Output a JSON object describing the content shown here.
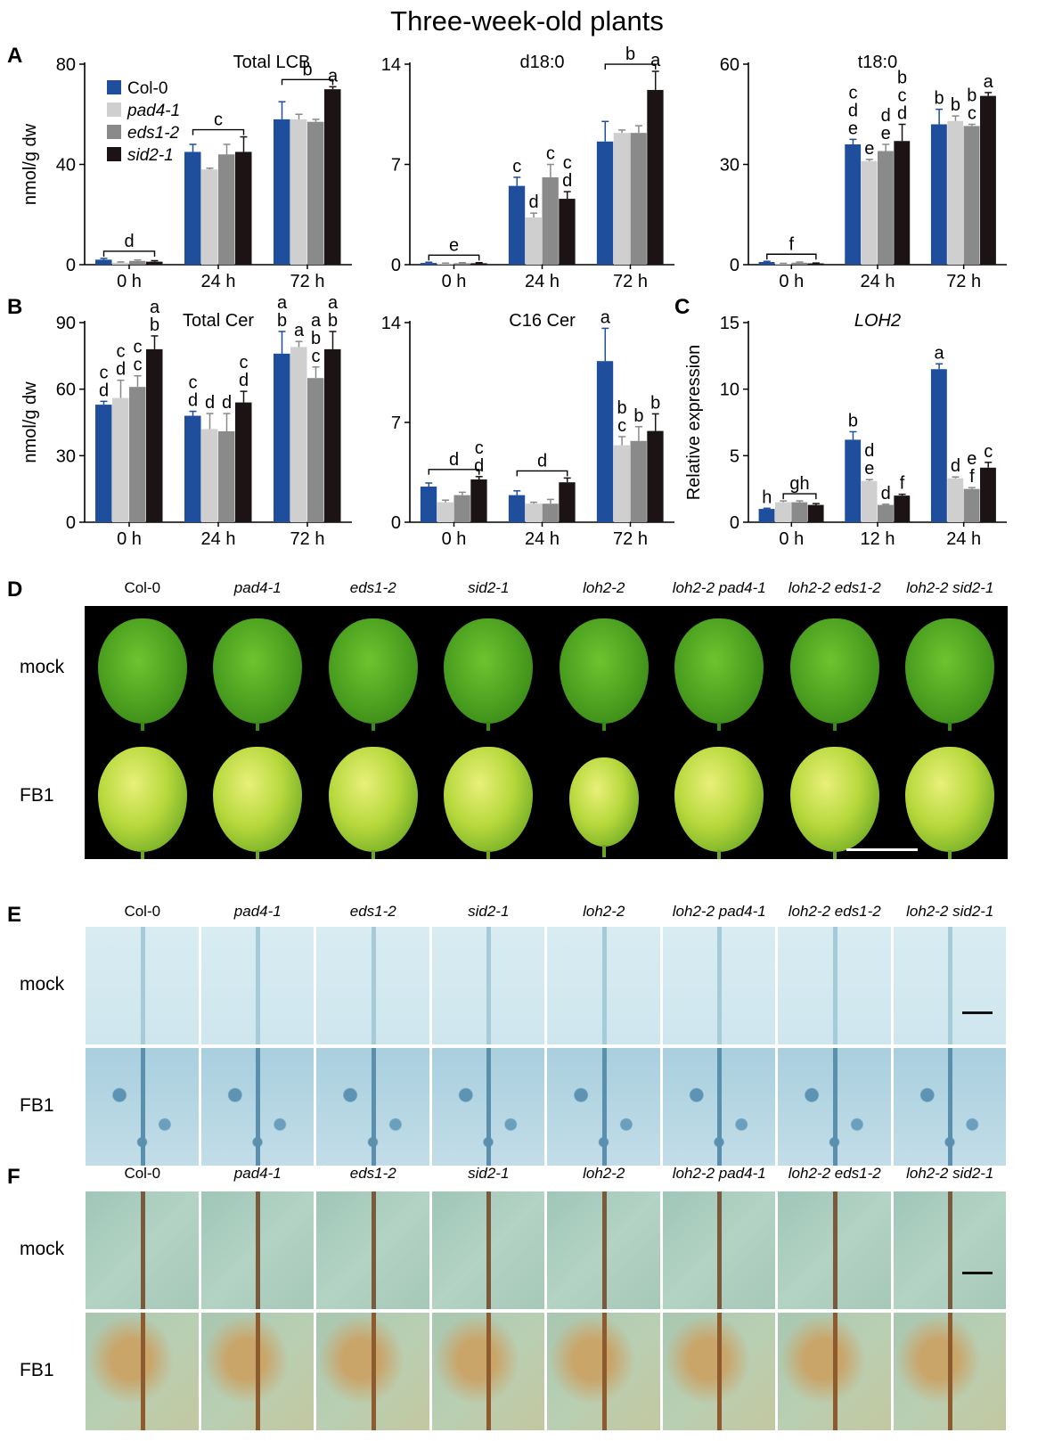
{
  "figure": {
    "title": "Three-week-old plants",
    "genotypes": [
      "Col-0",
      "pad4-1",
      "eds1-2",
      "sid2-1"
    ],
    "genotype_colors": [
      "#1f4e9c",
      "#cfcfcf",
      "#8a8a8a",
      "#1c1414"
    ],
    "photo_lines": [
      "Col-0",
      "pad4-1",
      "eds1-2",
      "sid2-1",
      "loh2-2",
      "loh2-2 pad4-1",
      "loh2-2 eds1-2",
      "loh2-2 sid2-1"
    ],
    "panels": {
      "D": {
        "letter": "D",
        "rows": [
          "mock",
          "FB1"
        ]
      },
      "E": {
        "letter": "E",
        "rows": [
          "mock",
          "FB1"
        ]
      },
      "F": {
        "letter": "F",
        "rows": [
          "mock",
          "FB1"
        ]
      }
    }
  },
  "chart_data": [
    {
      "letter": "A",
      "type": "bar",
      "title": "Total LCB",
      "ylabel": "nmol/g dw",
      "categories": [
        "0 h",
        "24 h",
        "72 h"
      ],
      "ylim": [
        0,
        80
      ],
      "yticks": [
        0,
        40,
        80
      ],
      "legend": {
        "position": "top-left",
        "entries": [
          "Col-0",
          "pad4-1",
          "eds1-2",
          "sid2-1"
        ]
      },
      "series": [
        {
          "name": "Col-0",
          "values": [
            2,
            45,
            58
          ],
          "errors": [
            0.5,
            3,
            7
          ]
        },
        {
          "name": "pad4-1",
          "values": [
            0.8,
            38,
            58
          ],
          "errors": [
            0.3,
            0.5,
            2
          ]
        },
        {
          "name": "eds1-2",
          "values": [
            1.5,
            44,
            57
          ],
          "errors": [
            0.4,
            4,
            1
          ]
        },
        {
          "name": "sid2-1",
          "values": [
            1.2,
            45,
            70
          ],
          "errors": [
            0.4,
            6,
            1
          ]
        }
      ],
      "letters": [
        [],
        [],
        [],
        []
      ],
      "brackets": [
        {
          "cat": 0,
          "label": "d"
        },
        {
          "cat": 1,
          "label": "c"
        },
        {
          "cat": 2,
          "label": "b"
        }
      ],
      "bar_labels": [
        {
          "cat": 2,
          "series": 3,
          "label": "a"
        }
      ]
    },
    {
      "letter": "",
      "type": "bar",
      "title": "d18:0",
      "ylabel": "",
      "categories": [
        "0 h",
        "24 h",
        "72 h"
      ],
      "ylim": [
        0,
        14
      ],
      "yticks": [
        0,
        7,
        14
      ],
      "series": [
        {
          "name": "Col-0",
          "values": [
            0.12,
            5.5,
            8.6
          ],
          "errors": [
            0.05,
            0.6,
            1.4
          ]
        },
        {
          "name": "pad4-1",
          "values": [
            0.08,
            3.3,
            9.2
          ],
          "errors": [
            0.03,
            0.3,
            0.2
          ]
        },
        {
          "name": "eds1-2",
          "values": [
            0.1,
            6.1,
            9.2
          ],
          "errors": [
            0.04,
            0.9,
            0.5
          ]
        },
        {
          "name": "sid2-1",
          "values": [
            0.1,
            4.6,
            12.2
          ],
          "errors": [
            0.04,
            0.5,
            1.3
          ]
        }
      ],
      "brackets": [
        {
          "cat": 0,
          "label": "e"
        },
        {
          "cat": 2,
          "label": "b"
        }
      ],
      "bar_labels": [
        {
          "cat": 1,
          "series": 0,
          "label": "c"
        },
        {
          "cat": 1,
          "series": 1,
          "label": "d"
        },
        {
          "cat": 1,
          "series": 2,
          "label": "c"
        },
        {
          "cat": 1,
          "series": 3,
          "label": "c\nd"
        },
        {
          "cat": 2,
          "series": 3,
          "label": "a"
        }
      ]
    },
    {
      "letter": "",
      "type": "bar",
      "title": "t18:0",
      "ylabel": "",
      "categories": [
        "0 h",
        "24 h",
        "72 h"
      ],
      "ylim": [
        0,
        60
      ],
      "yticks": [
        0,
        30,
        60
      ],
      "series": [
        {
          "name": "Col-0",
          "values": [
            0.8,
            36,
            42
          ],
          "errors": [
            0.2,
            1.5,
            4.5
          ]
        },
        {
          "name": "pad4-1",
          "values": [
            0.3,
            31,
            43
          ],
          "errors": [
            0.1,
            0.5,
            1.5
          ]
        },
        {
          "name": "eds1-2",
          "values": [
            0.6,
            34,
            41.5
          ],
          "errors": [
            0.2,
            2,
            0.5
          ]
        },
        {
          "name": "sid2-1",
          "values": [
            0.4,
            37,
            50.5
          ],
          "errors": [
            0.1,
            5,
            1
          ]
        }
      ],
      "brackets": [
        {
          "cat": 0,
          "label": "f"
        }
      ],
      "bar_labels": [
        {
          "cat": 1,
          "series": 0,
          "label": "c\nd\ne"
        },
        {
          "cat": 1,
          "series": 1,
          "label": "e"
        },
        {
          "cat": 1,
          "series": 2,
          "label": "d\ne"
        },
        {
          "cat": 1,
          "series": 3,
          "label": "b\nc\nd"
        },
        {
          "cat": 2,
          "series": 0,
          "label": "b"
        },
        {
          "cat": 2,
          "series": 1,
          "label": "b"
        },
        {
          "cat": 2,
          "series": 2,
          "label": "b\nc"
        },
        {
          "cat": 2,
          "series": 3,
          "label": "a"
        }
      ]
    },
    {
      "letter": "B",
      "type": "bar",
      "title": "Total Cer",
      "ylabel": "nmol/g dw",
      "categories": [
        "0 h",
        "24 h",
        "72 h"
      ],
      "ylim": [
        0,
        90
      ],
      "yticks": [
        0,
        30,
        60,
        90
      ],
      "series": [
        {
          "name": "Col-0",
          "values": [
            53,
            48,
            76
          ],
          "errors": [
            1.5,
            2,
            10
          ]
        },
        {
          "name": "pad4-1",
          "values": [
            56,
            42,
            79
          ],
          "errors": [
            8,
            7,
            2.5
          ]
        },
        {
          "name": "eds1-2",
          "values": [
            61,
            41,
            65
          ],
          "errors": [
            5,
            8,
            5
          ]
        },
        {
          "name": "sid2-1",
          "values": [
            78,
            54,
            78
          ],
          "errors": [
            6,
            5,
            8
          ]
        }
      ],
      "brackets": [],
      "bar_labels": [
        {
          "cat": 0,
          "series": 0,
          "label": "c\nd"
        },
        {
          "cat": 0,
          "series": 1,
          "label": "c\nd"
        },
        {
          "cat": 0,
          "series": 2,
          "label": "c\nc"
        },
        {
          "cat": 0,
          "series": 3,
          "label": "a\nb"
        },
        {
          "cat": 1,
          "series": 0,
          "label": "c\nd"
        },
        {
          "cat": 1,
          "series": 1,
          "label": "d"
        },
        {
          "cat": 1,
          "series": 2,
          "label": "d"
        },
        {
          "cat": 1,
          "series": 3,
          "label": "c\nd"
        },
        {
          "cat": 2,
          "series": 0,
          "label": "a\nb"
        },
        {
          "cat": 2,
          "series": 1,
          "label": "a"
        },
        {
          "cat": 2,
          "series": 2,
          "label": "a\nb\nc"
        },
        {
          "cat": 2,
          "series": 3,
          "label": "a\nb"
        }
      ]
    },
    {
      "letter": "",
      "type": "bar",
      "title": "C16 Cer",
      "ylabel": "",
      "categories": [
        "0 h",
        "24 h",
        "72 h"
      ],
      "ylim": [
        0,
        14
      ],
      "yticks": [
        0,
        7,
        14
      ],
      "series": [
        {
          "name": "Col-0",
          "values": [
            2.5,
            1.9,
            11.3
          ],
          "errors": [
            0.25,
            0.3,
            2.3
          ]
        },
        {
          "name": "pad4-1",
          "values": [
            1.4,
            1.3,
            5.4
          ],
          "errors": [
            0.15,
            0.1,
            0.6
          ]
        },
        {
          "name": "eds1-2",
          "values": [
            1.9,
            1.3,
            5.7
          ],
          "errors": [
            0.2,
            0.3,
            1.0
          ]
        },
        {
          "name": "sid2-1",
          "values": [
            3.0,
            2.8,
            6.4
          ],
          "errors": [
            0.2,
            0.3,
            1.2
          ]
        }
      ],
      "brackets": [
        {
          "cat": 0,
          "label": "d"
        },
        {
          "cat": 1,
          "label": "d"
        }
      ],
      "bar_labels": [
        {
          "cat": 0,
          "series": 3,
          "label": "c\nd"
        },
        {
          "cat": 2,
          "series": 0,
          "label": "a"
        },
        {
          "cat": 2,
          "series": 1,
          "label": "b\nc"
        },
        {
          "cat": 2,
          "series": 2,
          "label": "b"
        },
        {
          "cat": 2,
          "series": 3,
          "label": "b"
        }
      ]
    },
    {
      "letter": "C",
      "type": "bar",
      "title": "LOH2",
      "title_italic": true,
      "ylabel": "Relative expression",
      "categories": [
        "0 h",
        "12 h",
        "24 h"
      ],
      "ylim": [
        0,
        15
      ],
      "yticks": [
        0,
        5,
        10,
        15
      ],
      "series": [
        {
          "name": "Col-0",
          "values": [
            1,
            6.2,
            11.5
          ],
          "errors": [
            0.05,
            0.6,
            0.4
          ]
        },
        {
          "name": "pad4-1",
          "values": [
            1.5,
            3.1,
            3.3
          ],
          "errors": [
            0.1,
            0.1,
            0.1
          ]
        },
        {
          "name": "eds1-2",
          "values": [
            1.5,
            1.3,
            2.5
          ],
          "errors": [
            0.1,
            0.05,
            0.1
          ]
        },
        {
          "name": "sid2-1",
          "values": [
            1.3,
            2.0,
            4.1
          ],
          "errors": [
            0.1,
            0.1,
            0.4
          ]
        }
      ],
      "brackets": [
        {
          "cat": 0,
          "label": "gh",
          "partial": true
        }
      ],
      "bar_labels": [
        {
          "cat": 0,
          "series": 0,
          "label": "h"
        },
        {
          "cat": 1,
          "series": 0,
          "label": "b"
        },
        {
          "cat": 1,
          "series": 1,
          "label": "d\ne"
        },
        {
          "cat": 1,
          "series": 2,
          "label": "d"
        },
        {
          "cat": 1,
          "series": 3,
          "label": "f"
        },
        {
          "cat": 2,
          "series": 0,
          "label": "a"
        },
        {
          "cat": 2,
          "series": 1,
          "label": "d"
        },
        {
          "cat": 2,
          "series": 2,
          "label": "e\nf"
        },
        {
          "cat": 2,
          "series": 3,
          "label": "c"
        }
      ]
    }
  ]
}
